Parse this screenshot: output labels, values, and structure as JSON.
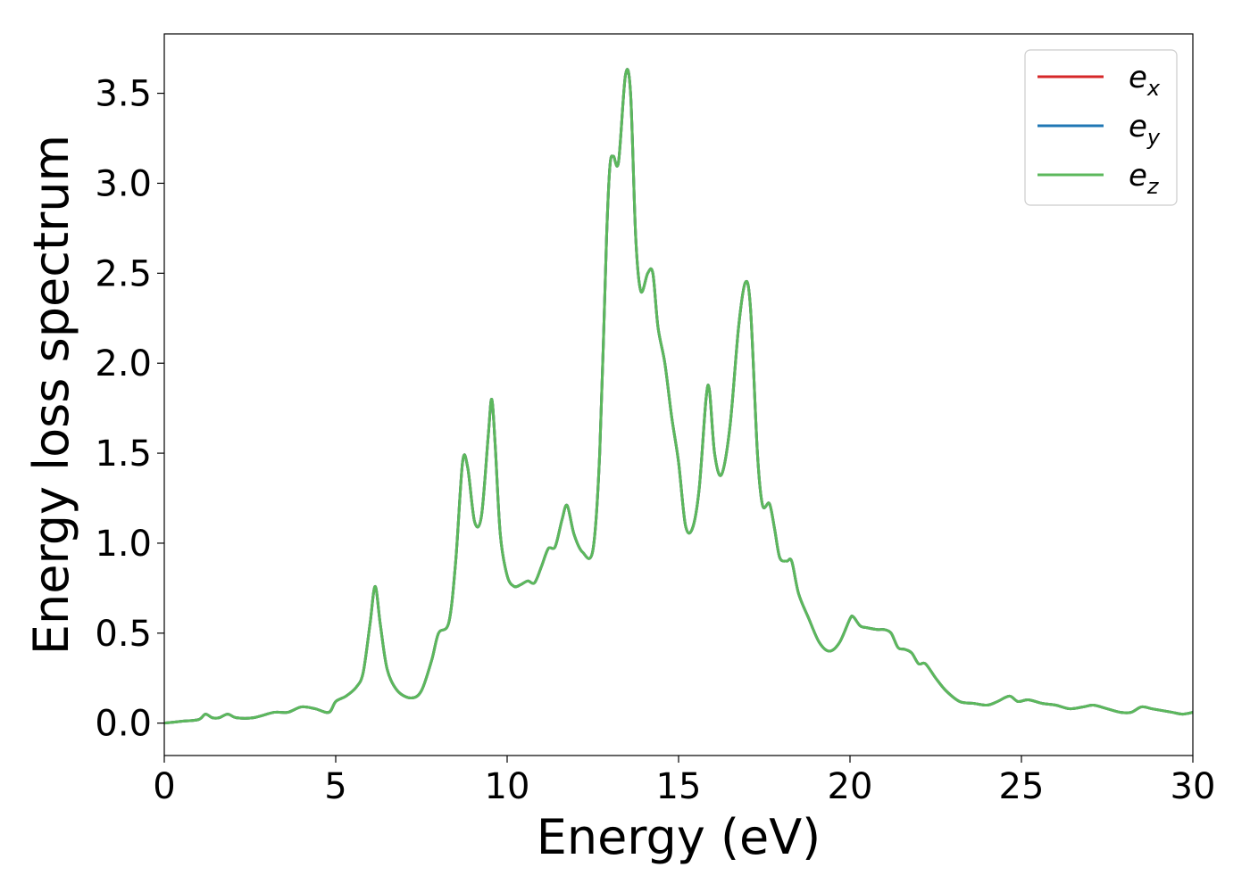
{
  "chart_data": {
    "type": "line",
    "xlabel": "Energy (eV)",
    "ylabel": "Energy loss spectrum",
    "xlim": [
      0,
      30
    ],
    "ylim": [
      -0.18,
      3.83
    ],
    "xticks": [
      0,
      5,
      10,
      15,
      20,
      25,
      30
    ],
    "xtick_labels": [
      "0",
      "5",
      "10",
      "15",
      "20",
      "25",
      "30"
    ],
    "yticks": [
      0.0,
      0.5,
      1.0,
      1.5,
      2.0,
      2.5,
      3.0,
      3.5
    ],
    "ytick_labels": [
      "0.0",
      "0.5",
      "1.0",
      "1.5",
      "2.0",
      "2.5",
      "3.0",
      "3.5"
    ],
    "grid": false,
    "legend_position": "top-right",
    "legend": [
      {
        "base": "e",
        "sub": "x",
        "color": "#d62728"
      },
      {
        "base": "e",
        "sub": "y",
        "color": "#1f77b4"
      },
      {
        "base": "e",
        "sub": "z",
        "color": "#5cb85c"
      }
    ],
    "x": [
      0,
      0.5,
      1.0,
      1.2,
      1.4,
      1.6,
      1.85,
      2.1,
      2.6,
      3.2,
      3.6,
      4.0,
      4.4,
      4.8,
      5.0,
      5.3,
      5.6,
      5.8,
      6.0,
      6.15,
      6.3,
      6.5,
      6.8,
      7.2,
      7.5,
      7.8,
      8.0,
      8.3,
      8.5,
      8.7,
      8.85,
      9.05,
      9.25,
      9.45,
      9.55,
      9.65,
      9.8,
      10.0,
      10.2,
      10.4,
      10.6,
      10.8,
      11.0,
      11.2,
      11.4,
      11.6,
      11.75,
      11.95,
      12.2,
      12.5,
      12.7,
      12.9,
      13.0,
      13.1,
      13.25,
      13.45,
      13.6,
      13.75,
      13.9,
      14.1,
      14.25,
      14.4,
      14.6,
      14.8,
      15.0,
      15.2,
      15.4,
      15.6,
      15.8,
      15.9,
      16.05,
      16.25,
      16.5,
      16.75,
      16.95,
      17.1,
      17.3,
      17.45,
      17.65,
      17.8,
      17.95,
      18.15,
      18.3,
      18.5,
      18.8,
      19.1,
      19.4,
      19.7,
      20.0,
      20.1,
      20.3,
      20.5,
      20.8,
      21.0,
      21.2,
      21.4,
      21.6,
      21.8,
      22.0,
      22.2,
      22.5,
      22.8,
      23.2,
      23.6,
      24.0,
      24.3,
      24.65,
      24.9,
      25.2,
      25.6,
      26.0,
      26.4,
      26.8,
      27.1,
      27.5,
      27.9,
      28.2,
      28.5,
      28.8,
      29.1,
      29.4,
      29.7,
      30.0
    ],
    "series": [
      {
        "name": "e_x",
        "color": "#d62728",
        "y": [
          0.0,
          0.01,
          0.02,
          0.05,
          0.03,
          0.03,
          0.05,
          0.03,
          0.03,
          0.06,
          0.06,
          0.09,
          0.08,
          0.06,
          0.12,
          0.15,
          0.2,
          0.28,
          0.55,
          0.76,
          0.55,
          0.3,
          0.18,
          0.14,
          0.18,
          0.35,
          0.5,
          0.56,
          0.9,
          1.45,
          1.42,
          1.12,
          1.15,
          1.6,
          1.8,
          1.55,
          1.05,
          0.82,
          0.76,
          0.77,
          0.79,
          0.78,
          0.87,
          0.97,
          0.98,
          1.13,
          1.21,
          1.05,
          0.95,
          0.96,
          1.5,
          2.7,
          3.1,
          3.15,
          3.12,
          3.6,
          3.5,
          2.7,
          2.4,
          2.5,
          2.5,
          2.2,
          2.0,
          1.7,
          1.45,
          1.1,
          1.08,
          1.3,
          1.8,
          1.85,
          1.5,
          1.38,
          1.65,
          2.2,
          2.45,
          2.3,
          1.5,
          1.21,
          1.22,
          1.08,
          0.92,
          0.9,
          0.9,
          0.72,
          0.58,
          0.45,
          0.4,
          0.45,
          0.58,
          0.59,
          0.54,
          0.53,
          0.52,
          0.52,
          0.5,
          0.42,
          0.41,
          0.39,
          0.33,
          0.33,
          0.25,
          0.18,
          0.12,
          0.11,
          0.1,
          0.12,
          0.15,
          0.12,
          0.13,
          0.11,
          0.1,
          0.08,
          0.09,
          0.1,
          0.08,
          0.06,
          0.06,
          0.09,
          0.08,
          0.07,
          0.06,
          0.05,
          0.06
        ]
      },
      {
        "name": "e_y",
        "color": "#1f77b4",
        "y": [
          0.0,
          0.01,
          0.02,
          0.05,
          0.03,
          0.03,
          0.05,
          0.03,
          0.03,
          0.06,
          0.06,
          0.09,
          0.08,
          0.06,
          0.12,
          0.15,
          0.2,
          0.28,
          0.55,
          0.76,
          0.55,
          0.3,
          0.18,
          0.14,
          0.18,
          0.35,
          0.5,
          0.56,
          0.9,
          1.45,
          1.42,
          1.12,
          1.15,
          1.6,
          1.8,
          1.55,
          1.05,
          0.82,
          0.76,
          0.77,
          0.79,
          0.78,
          0.87,
          0.97,
          0.98,
          1.13,
          1.21,
          1.05,
          0.95,
          0.96,
          1.5,
          2.7,
          3.1,
          3.15,
          3.12,
          3.6,
          3.5,
          2.7,
          2.4,
          2.5,
          2.5,
          2.2,
          2.0,
          1.7,
          1.45,
          1.1,
          1.08,
          1.3,
          1.8,
          1.85,
          1.5,
          1.38,
          1.65,
          2.2,
          2.45,
          2.3,
          1.5,
          1.21,
          1.22,
          1.08,
          0.92,
          0.9,
          0.9,
          0.72,
          0.58,
          0.45,
          0.4,
          0.45,
          0.58,
          0.59,
          0.54,
          0.53,
          0.52,
          0.52,
          0.5,
          0.42,
          0.41,
          0.39,
          0.33,
          0.33,
          0.25,
          0.18,
          0.12,
          0.11,
          0.1,
          0.12,
          0.15,
          0.12,
          0.13,
          0.11,
          0.1,
          0.08,
          0.09,
          0.1,
          0.08,
          0.06,
          0.06,
          0.09,
          0.08,
          0.07,
          0.06,
          0.05,
          0.06
        ]
      },
      {
        "name": "e_z",
        "color": "#5cb85c",
        "y": [
          0.0,
          0.01,
          0.02,
          0.05,
          0.03,
          0.03,
          0.05,
          0.03,
          0.03,
          0.06,
          0.06,
          0.09,
          0.08,
          0.06,
          0.12,
          0.15,
          0.2,
          0.28,
          0.55,
          0.76,
          0.55,
          0.3,
          0.18,
          0.14,
          0.18,
          0.35,
          0.5,
          0.56,
          0.9,
          1.45,
          1.42,
          1.12,
          1.15,
          1.6,
          1.8,
          1.55,
          1.05,
          0.82,
          0.76,
          0.77,
          0.79,
          0.78,
          0.87,
          0.97,
          0.98,
          1.13,
          1.21,
          1.05,
          0.95,
          0.96,
          1.5,
          2.7,
          3.1,
          3.15,
          3.12,
          3.6,
          3.5,
          2.7,
          2.4,
          2.5,
          2.5,
          2.2,
          2.0,
          1.7,
          1.45,
          1.1,
          1.08,
          1.3,
          1.8,
          1.85,
          1.5,
          1.38,
          1.65,
          2.2,
          2.45,
          2.3,
          1.5,
          1.21,
          1.22,
          1.08,
          0.92,
          0.9,
          0.9,
          0.72,
          0.58,
          0.45,
          0.4,
          0.45,
          0.58,
          0.59,
          0.54,
          0.53,
          0.52,
          0.52,
          0.5,
          0.42,
          0.41,
          0.39,
          0.33,
          0.33,
          0.25,
          0.18,
          0.12,
          0.11,
          0.1,
          0.12,
          0.15,
          0.12,
          0.13,
          0.11,
          0.1,
          0.08,
          0.09,
          0.1,
          0.08,
          0.06,
          0.06,
          0.09,
          0.08,
          0.07,
          0.06,
          0.05,
          0.06
        ]
      }
    ]
  }
}
